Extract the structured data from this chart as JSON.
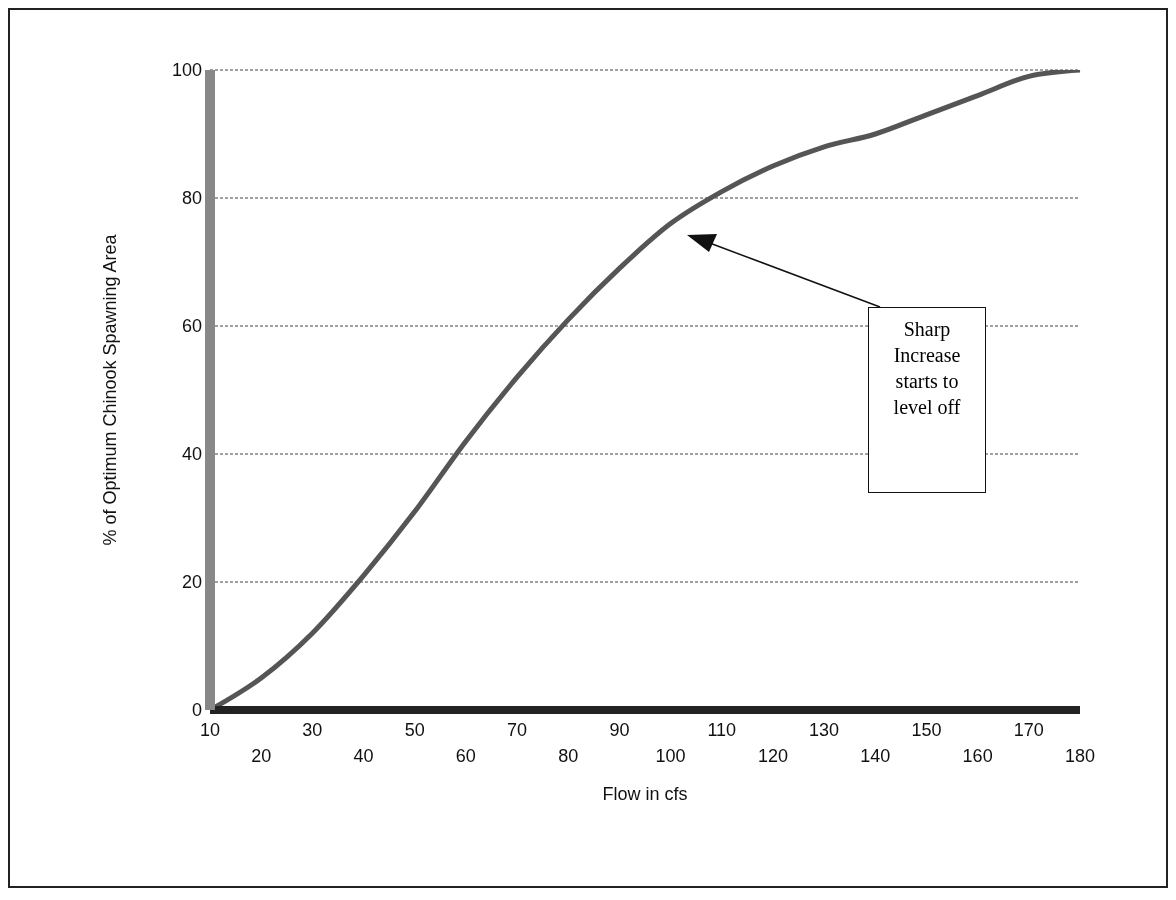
{
  "chart_data": {
    "type": "line",
    "xlabel": "Flow in cfs",
    "ylabel": "% of Optimum Chinook Spawning Area",
    "categories": [
      "10",
      "20",
      "30",
      "40",
      "50",
      "60",
      "70",
      "80",
      "90",
      "100",
      "110",
      "120",
      "130",
      "140",
      "150",
      "160",
      "170",
      "180"
    ],
    "series": [
      {
        "color": "#555555",
        "values": [
          0,
          5,
          12,
          21,
          31,
          42,
          52,
          61,
          69,
          76,
          81,
          85,
          88,
          90,
          93,
          96,
          99,
          100
        ]
      }
    ],
    "ylim": [
      0,
      100
    ],
    "yticks": [
      0,
      20,
      40,
      60,
      80,
      100
    ],
    "grid": "y",
    "legend": false,
    "marker": "none",
    "line_style": "solid",
    "annotations": [
      "Sharp Increase starts to level off"
    ]
  }
}
